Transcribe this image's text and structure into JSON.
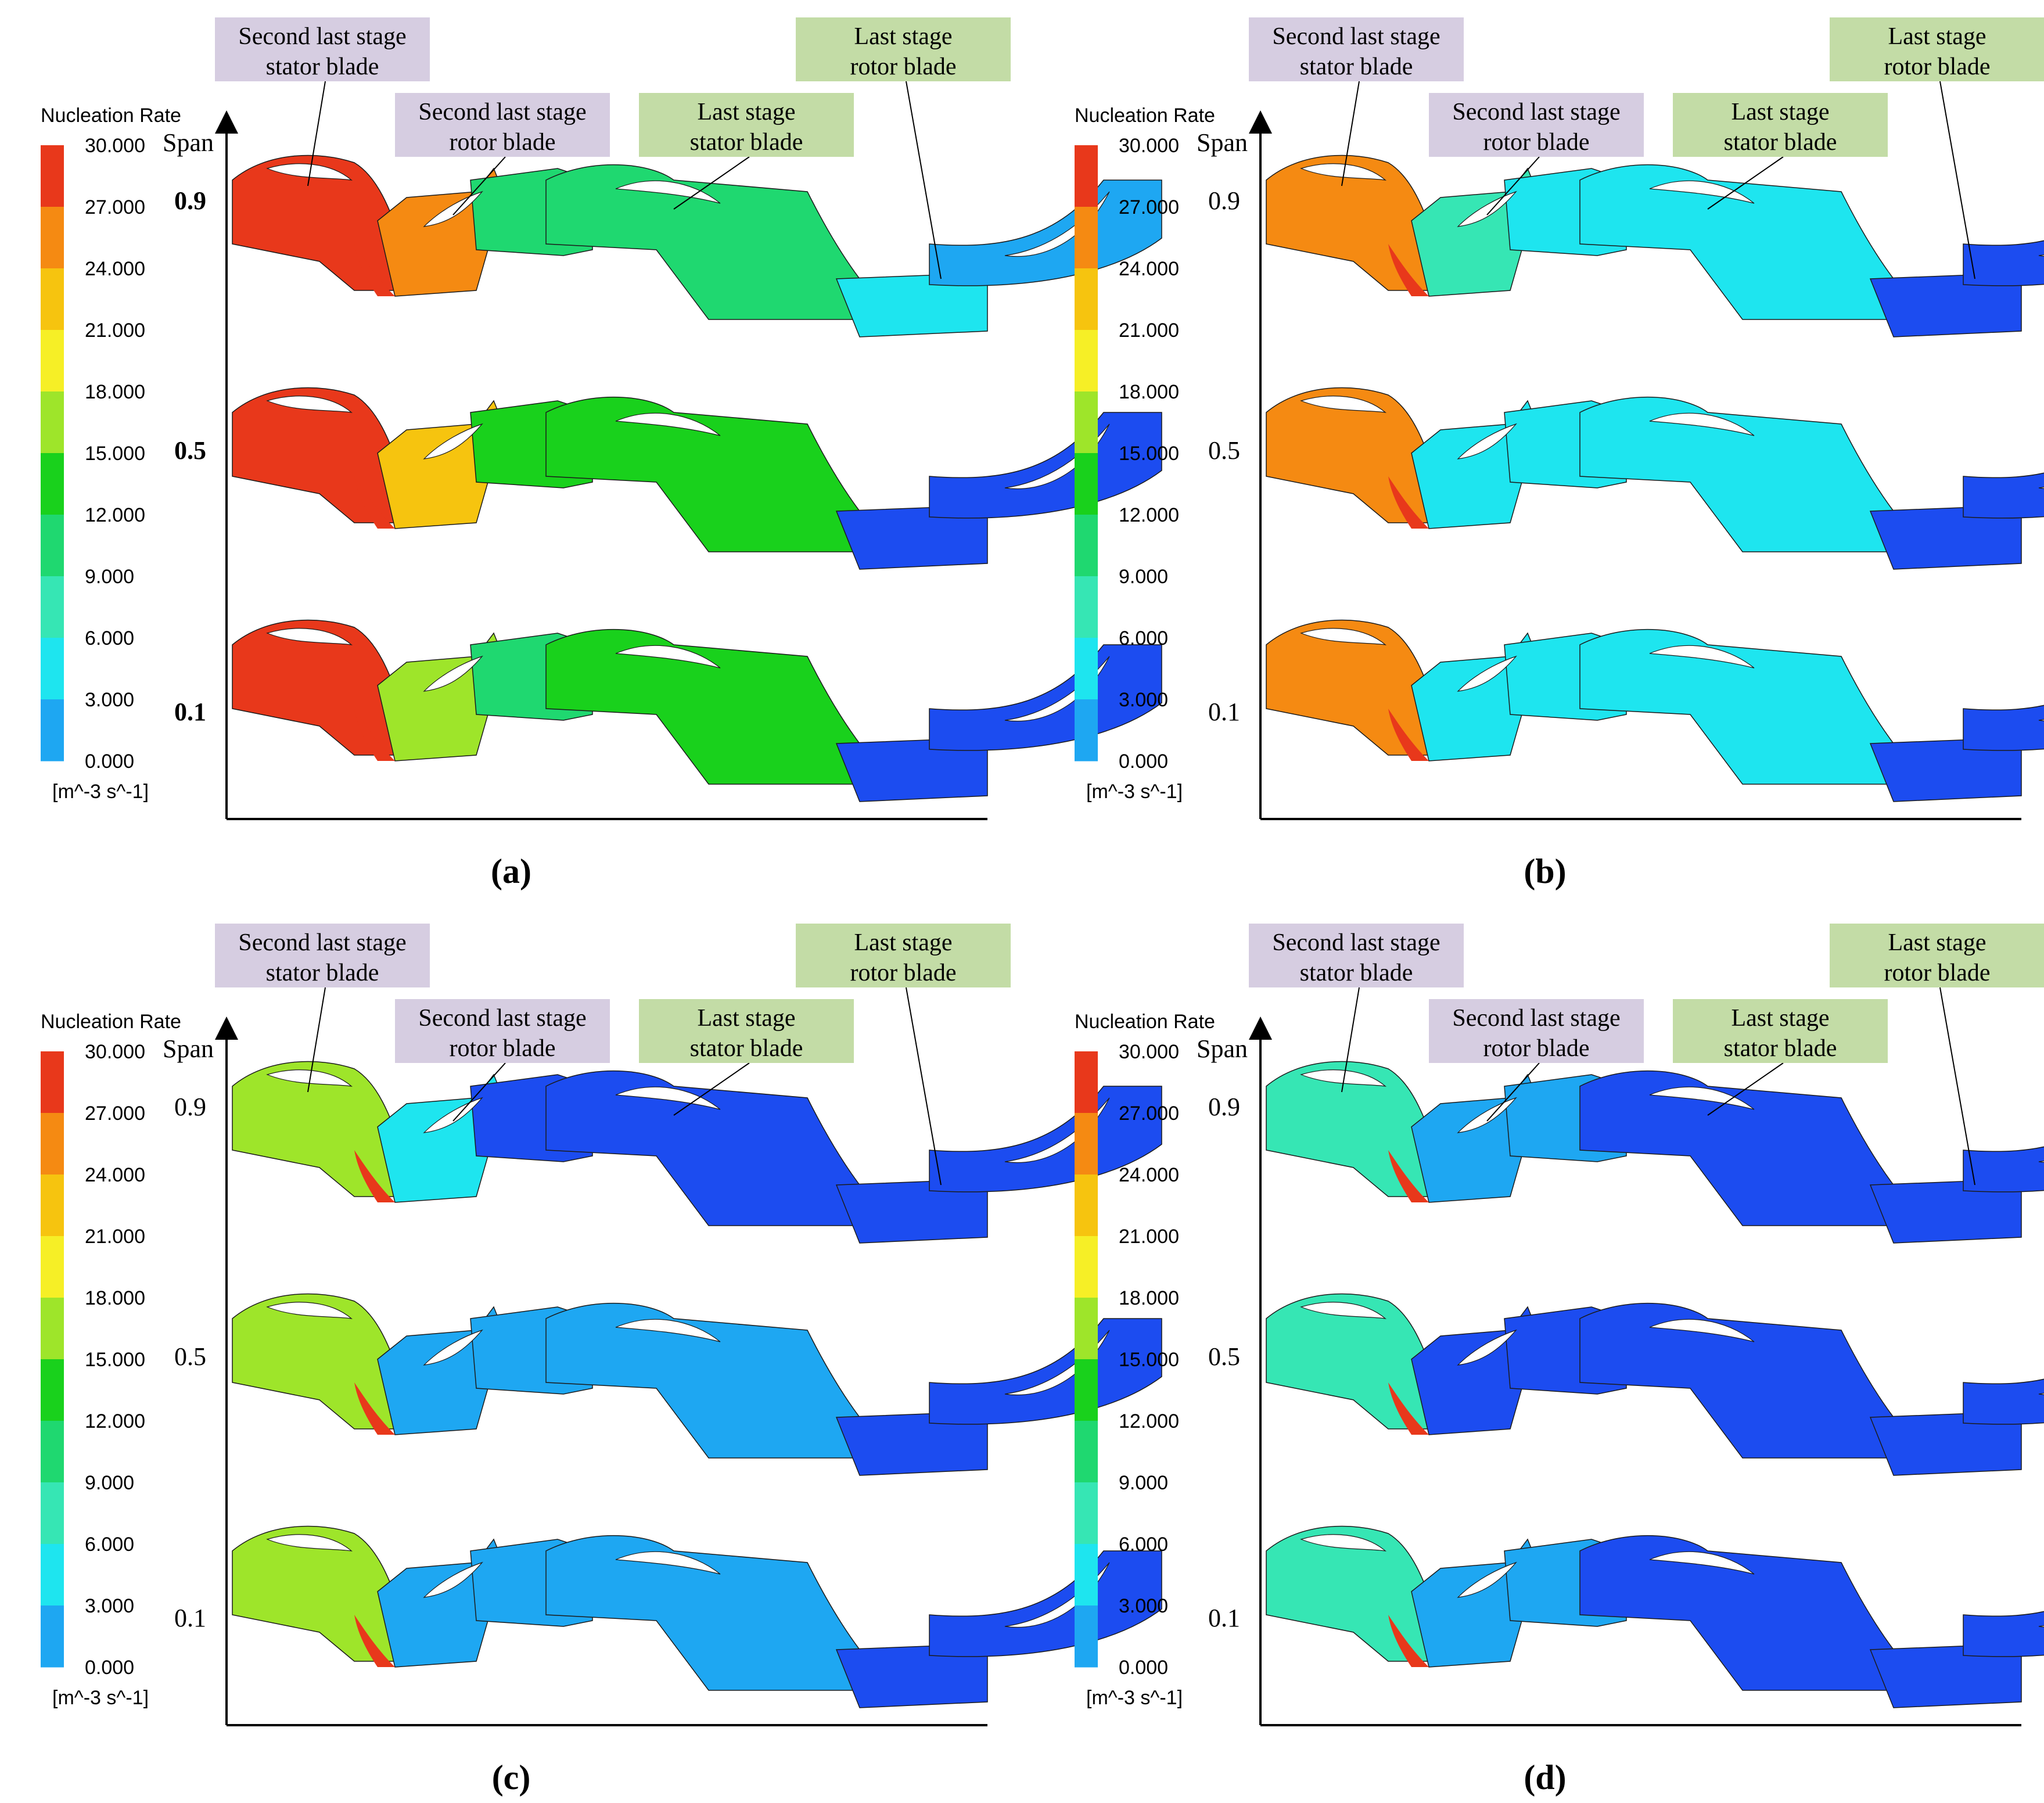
{
  "colorbar": {
    "title": "Nucleation Rate",
    "unit": "[m^-3 s^-1]",
    "ticks": [
      "30.000",
      "27.000",
      "24.000",
      "21.000",
      "18.000",
      "15.000",
      "12.000",
      "9.000",
      "6.000",
      "3.000",
      "0.000"
    ],
    "colors": [
      "#e8381b",
      "#f58a12",
      "#f6c40f",
      "#f6ef26",
      "#9ee52a",
      "#19d11c",
      "#1fd870",
      "#36e6b4",
      "#1ee5ef",
      "#1ea7f2",
      "#1c4cf0"
    ]
  },
  "axis": {
    "span_label": "Span"
  },
  "colors": {
    "label_purple": "#d6cde1",
    "label_green": "#c3dca6",
    "contour_blue": "#1c4cf0",
    "contour_red": "#e8381b"
  },
  "panels": [
    {
      "id": "a",
      "caption": "(a)",
      "span_labels": [
        "0.9",
        "0.5",
        "0.1"
      ],
      "labels": {
        "stator2": "Second last stage stator blade",
        "rotor2": "Second last stage rotor blade",
        "stator_last": "Last stage stator blade",
        "rotor_last": "Last stage rotor blade"
      },
      "rows": [
        {
          "span": "0.9",
          "zone_levels": [
            30,
            27,
            12,
            12,
            6,
            3
          ]
        },
        {
          "span": "0.5",
          "zone_levels": [
            30,
            24,
            15,
            15,
            0,
            0
          ]
        },
        {
          "span": "0.1",
          "zone_levels": [
            30,
            18,
            12,
            15,
            0,
            0
          ]
        }
      ]
    },
    {
      "id": "b",
      "caption": "(b)",
      "span_labels": [
        "0.9",
        "0.5",
        "0.1"
      ],
      "labels": {
        "stator2": "Second last stage stator blade",
        "rotor2": "Second last stage rotor blade",
        "stator_last": "Last stage stator blade",
        "rotor_last": "Last stage rotor blade"
      },
      "rows": [
        {
          "span": "0.9",
          "zone_levels": [
            27,
            9,
            6,
            6,
            0,
            0
          ]
        },
        {
          "span": "0.5",
          "zone_levels": [
            27,
            6,
            6,
            6,
            0,
            0
          ]
        },
        {
          "span": "0.1",
          "zone_levels": [
            27,
            6,
            6,
            6,
            0,
            0
          ]
        }
      ]
    },
    {
      "id": "c",
      "caption": "(c)",
      "span_labels": [
        "0.9",
        "0.5",
        "0.1"
      ],
      "labels": {
        "stator2": "Second last stage stator blade",
        "rotor2": "Second last stage rotor blade",
        "stator_last": "Last stage stator blade",
        "rotor_last": "Last stage rotor blade"
      },
      "rows": [
        {
          "span": "0.9",
          "zone_levels": [
            18,
            6,
            0,
            0,
            0,
            0
          ]
        },
        {
          "span": "0.5",
          "zone_levels": [
            18,
            3,
            3,
            3,
            0,
            0
          ]
        },
        {
          "span": "0.1",
          "zone_levels": [
            18,
            3,
            3,
            3,
            0,
            0
          ]
        }
      ]
    },
    {
      "id": "d",
      "caption": "(d)",
      "span_labels": [
        "0.9",
        "0.5",
        "0.1"
      ],
      "labels": {
        "stator2": "Second last stage stator blade",
        "rotor2": "Second last stage rotor blade",
        "stator_last": "Last stage stator blade",
        "rotor_last": "Last stage rotor blade"
      },
      "rows": [
        {
          "span": "0.9",
          "zone_levels": [
            9,
            3,
            3,
            0,
            0,
            0
          ]
        },
        {
          "span": "0.5",
          "zone_levels": [
            9,
            0,
            0,
            0,
            0,
            0
          ]
        },
        {
          "span": "0.1",
          "zone_levels": [
            9,
            3,
            3,
            0,
            0,
            0
          ]
        }
      ]
    }
  ]
}
